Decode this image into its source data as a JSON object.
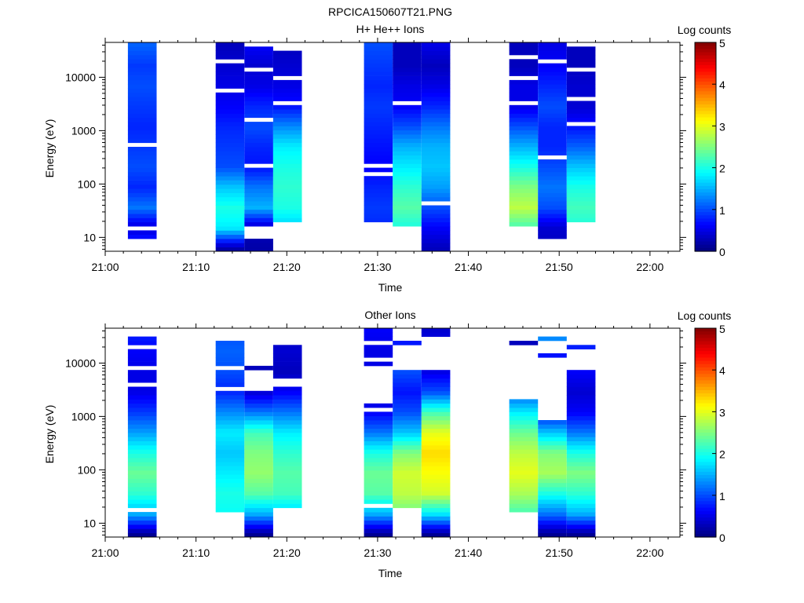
{
  "figure_title": "RPCICA150607T21.PNG",
  "chart_data": [
    {
      "type": "heatmap",
      "title": "H+ He++ Ions",
      "xlabel": "Time",
      "ylabel": "Energy (eV)",
      "x_ticks": [
        "21:00",
        "21:10",
        "21:20",
        "21:30",
        "21:40",
        "21:50",
        "22:00"
      ],
      "x_range_minutes": [
        0,
        63.3
      ],
      "y_scale": "log",
      "y_ticks": [
        "10",
        "100",
        "1000",
        "10000"
      ],
      "y_range": [
        5.5,
        45000
      ],
      "colorbar": {
        "label": "Log counts",
        "ticks": [
          "0",
          "1",
          "2",
          "3",
          "4",
          "5"
        ],
        "range": [
          0,
          5
        ]
      },
      "columns": [
        {
          "start": "21:02:30",
          "end": "21:05:40",
          "e_range": [
            9,
            45000
          ],
          "level_profile": [
            1.0,
            0.4,
            1.2,
            0.8,
            1.0,
            0.9,
            0.8,
            0.9,
            1.0,
            0.9,
            1.1
          ],
          "gaps": [
            [
              13,
              17
            ],
            [
              500,
              560
            ],
            [
              2500,
              2700
            ]
          ]
        },
        {
          "start": "21:12:10",
          "end": "21:15:20",
          "e_range": [
            5.5,
            42000
          ],
          "level_profile": [
            0.2,
            1.8,
            2.0,
            1.6,
            1.0,
            0.9,
            0.8,
            0.6,
            0.5,
            0.4,
            0.3
          ],
          "gaps": [
            [
              110,
              120
            ],
            [
              700,
              760
            ],
            [
              5000,
              6000
            ],
            [
              18000,
              21000
            ]
          ]
        },
        {
          "start": "21:15:20",
          "end": "21:18:30",
          "e_range": [
            5.5,
            40000
          ],
          "level_profile": [
            0.2,
            0.3,
            1.5,
            1.2,
            0.7,
            0.8,
            1.0,
            0.8,
            0.5,
            0.4,
            0.6
          ],
          "gaps": [
            [
              10,
              15
            ],
            [
              200,
              230
            ],
            [
              1500,
              1700
            ],
            [
              12000,
              14000
            ]
          ]
        },
        {
          "start": "21:18:30",
          "end": "21:21:40",
          "e_range": [
            20,
            30000
          ],
          "level_profile": [
            0.9,
            1.6,
            2.0,
            2.1,
            2.0,
            1.8,
            1.3,
            0.7,
            0.5,
            0.4,
            0.3
          ],
          "gaps": [
            [
              110,
              120
            ],
            [
              3000,
              3500
            ],
            [
              9000,
              10000
            ]
          ]
        },
        {
          "start": "21:28:30",
          "end": "21:31:40",
          "e_range": [
            18,
            45000
          ],
          "level_profile": [
            0.6,
            0.8,
            0.9,
            0.8,
            0.6,
            0.7,
            0.8,
            0.9,
            0.8,
            0.9,
            1.0
          ],
          "gaps": [
            [
              150,
              165
            ],
            [
              220,
              240
            ],
            [
              25000,
              28000
            ]
          ]
        },
        {
          "start": "21:31:40",
          "end": "21:34:50",
          "e_range": [
            15,
            42000
          ],
          "level_profile": [
            0.4,
            2.0,
            2.3,
            2.1,
            1.8,
            1.5,
            1.0,
            0.6,
            0.5,
            0.3,
            0.3
          ],
          "gaps": [
            [
              3000,
              3500
            ],
            [
              14000,
              16000
            ],
            [
              30000,
              33000
            ]
          ]
        },
        {
          "start": "21:34:50",
          "end": "21:38:00",
          "e_range": [
            5.5,
            45000
          ],
          "level_profile": [
            0.3,
            0.6,
            1.0,
            1.4,
            1.6,
            1.5,
            1.2,
            0.8,
            0.5,
            0.3,
            0.5
          ],
          "gaps": [
            [
              40,
              44
            ],
            [
              5000,
              5500
            ],
            [
              25000,
              28000
            ]
          ]
        },
        {
          "start": "21:44:30",
          "end": "21:47:40",
          "e_range": [
            15,
            42000
          ],
          "level_profile": [
            1.0,
            2.2,
            2.8,
            2.5,
            2.0,
            1.5,
            1.0,
            0.5,
            0.5,
            0.3,
            0.3
          ],
          "gaps": [
            [
              1400,
              1600
            ],
            [
              3000,
              3400
            ],
            [
              9000,
              10000
            ],
            [
              22000,
              25000
            ]
          ]
        },
        {
          "start": "21:47:40",
          "end": "21:50:50",
          "e_range": [
            9,
            45000
          ],
          "level_profile": [
            0.3,
            0.4,
            1.0,
            1.2,
            1.0,
            0.8,
            0.8,
            1.0,
            0.8,
            0.6,
            0.5
          ],
          "gaps": [
            [
              300,
              340
            ],
            [
              700,
              760
            ],
            [
              1400,
              1500
            ],
            [
              20000,
              22000
            ]
          ]
        },
        {
          "start": "21:50:50",
          "end": "21:54:00",
          "e_range": [
            20,
            38000
          ],
          "level_profile": [
            1.0,
            2.0,
            2.2,
            2.0,
            1.6,
            1.1,
            0.7,
            0.4,
            0.4,
            0.3,
            0.3
          ],
          "gaps": [
            [
              1200,
              1400
            ],
            [
              3500,
              4000
            ],
            [
              12000,
              15000
            ]
          ]
        }
      ]
    },
    {
      "type": "heatmap",
      "title": "Other Ions",
      "xlabel": "Time",
      "ylabel": "Energy (eV)",
      "x_ticks": [
        "21:00",
        "21:10",
        "21:20",
        "21:30",
        "21:40",
        "21:50",
        "22:00"
      ],
      "x_range_minutes": [
        0,
        63.3
      ],
      "y_scale": "log",
      "y_ticks": [
        "10",
        "100",
        "1000",
        "10000"
      ],
      "y_range": [
        5.5,
        45000
      ],
      "colorbar": {
        "label": "Log counts",
        "ticks": [
          "0",
          "1",
          "2",
          "3",
          "4",
          "5"
        ],
        "range": [
          0,
          5
        ]
      },
      "columns": [
        {
          "start": "21:02:30",
          "end": "21:05:40",
          "e_range": [
            5.5,
            32000
          ],
          "level_profile": [
            0.1,
            1.5,
            2.1,
            2.4,
            2.0,
            1.4,
            0.9,
            0.5,
            0.5,
            0.6,
            0.8
          ],
          "gaps": [
            [
              15,
              20
            ],
            [
              3500,
              4000
            ],
            [
              8000,
              9500
            ],
            [
              20000,
              23000
            ]
          ]
        },
        {
          "start": "21:12:10",
          "end": "21:15:20",
          "e_range": [
            15,
            32000
          ],
          "level_profile": [
            0.2,
            1.9,
            2.0,
            1.8,
            1.6,
            1.8,
            1.3,
            0.8,
            1.0,
            1.1,
            1.0
          ],
          "gaps": [
            [
              3000,
              3500
            ],
            [
              8000,
              9500
            ],
            [
              28000,
              30000
            ]
          ]
        },
        {
          "start": "21:15:20",
          "end": "21:18:30",
          "e_range": [
            5.5,
            31000
          ],
          "level_profile": [
            0.1,
            1.5,
            2.3,
            2.6,
            2.5,
            2.2,
            1.2,
            0.4,
            0.3,
            0.3,
            0.3
          ],
          "gaps": [
            [
              3200,
              8000
            ],
            [
              8600,
              29000
            ]
          ]
        },
        {
          "start": "21:18:30",
          "end": "21:21:40",
          "e_range": [
            20,
            31000
          ],
          "level_profile": [
            0.9,
            1.6,
            2.2,
            2.3,
            2.1,
            1.8,
            1.2,
            0.6,
            0.3,
            0.4,
            0.3
          ],
          "gaps": [
            [
              3500,
              5000
            ],
            [
              22000,
              29000
            ]
          ]
        },
        {
          "start": "21:28:30",
          "end": "21:31:40",
          "e_range": [
            5.5,
            45000
          ],
          "level_profile": [
            0.1,
            1.5,
            2.3,
            2.4,
            2.0,
            1.2,
            0.6,
            0.4,
            0.5,
            0.5,
            0.6
          ],
          "gaps": [
            [
              20,
              22
            ],
            [
              1200,
              1600
            ],
            [
              1900,
              2800
            ],
            [
              3200,
              9000
            ],
            [
              11000,
              13000
            ],
            [
              22000,
              28000
            ]
          ]
        },
        {
          "start": "21:31:40",
          "end": "21:34:50",
          "e_range": [
            20,
            26000
          ],
          "level_profile": [
            1.2,
            2.4,
            2.8,
            2.9,
            2.5,
            1.6,
            1.0,
            0.7,
            1.0,
            0.9,
            0.5
          ],
          "gaps": [
            [
              7500,
              23000
            ]
          ]
        },
        {
          "start": "21:34:50",
          "end": "21:38:00",
          "e_range": [
            5.5,
            45000
          ],
          "level_profile": [
            0.1,
            1.8,
            2.9,
            3.1,
            3.3,
            3.0,
            2.2,
            1.0,
            0.5,
            0.6,
            0.4
          ],
          "gaps": [
            [
              8000,
              34000
            ]
          ]
        },
        {
          "start": "21:44:30",
          "end": "21:47:40",
          "e_range": [
            15,
            25000
          ],
          "level_profile": [
            0.3,
            2.2,
            2.7,
            3.0,
            2.8,
            2.4,
            1.8,
            1.0,
            0.3,
            0.3,
            0.3
          ],
          "gaps": [
            [
              2100,
              17000
            ],
            [
              19000,
              23000
            ]
          ]
        },
        {
          "start": "21:47:40",
          "end": "21:50:50",
          "e_range": [
            5.5,
            30000
          ],
          "level_profile": [
            0.1,
            1.2,
            2.0,
            2.7,
            2.5,
            1.6,
            0.6,
            0.4,
            0.3,
            0.8,
            1.6
          ],
          "gaps": [
            [
              9,
              9.6
            ],
            [
              900,
              12000
            ],
            [
              14000,
              27000
            ]
          ]
        },
        {
          "start": "21:50:50",
          "end": "21:54:00",
          "e_range": [
            5.5,
            23000
          ],
          "level_profile": [
            0.1,
            1.5,
            2.1,
            2.5,
            2.0,
            1.2,
            0.6,
            0.4,
            0.6,
            0.9,
            0.3
          ],
          "gaps": [
            [
              8000,
              20000
            ]
          ]
        }
      ]
    }
  ]
}
